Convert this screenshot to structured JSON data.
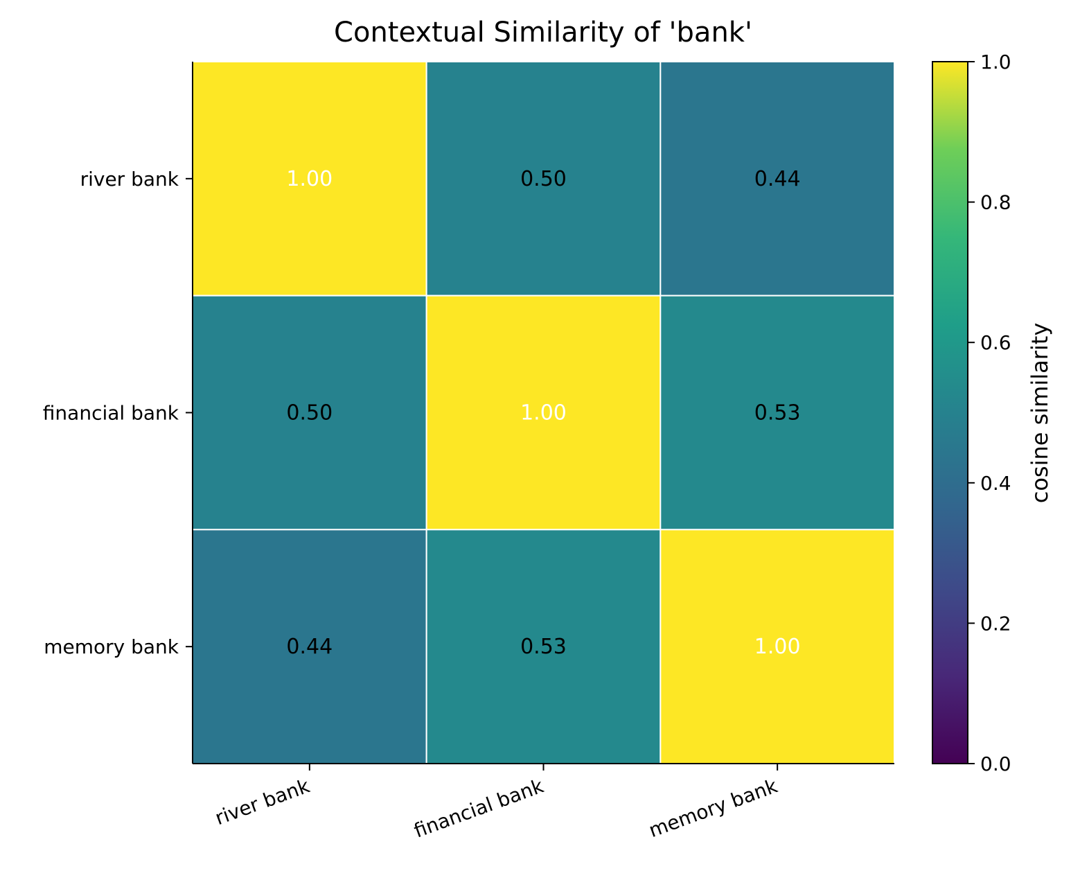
{
  "chart_data": {
    "type": "heatmap",
    "title": "Contextual Similarity of 'bank'",
    "row_labels": [
      "river bank",
      "financial bank",
      "memory bank"
    ],
    "col_labels": [
      "river bank",
      "financial bank",
      "memory bank"
    ],
    "values": [
      [
        1.0,
        0.5,
        0.44
      ],
      [
        0.5,
        1.0,
        0.53
      ],
      [
        0.44,
        0.53,
        1.0
      ]
    ],
    "cell_labels": [
      [
        "1.00",
        "0.50",
        "0.44"
      ],
      [
        "0.50",
        "1.00",
        "0.53"
      ],
      [
        "0.44",
        "0.53",
        "1.00"
      ]
    ],
    "colormap": "viridis",
    "vmin": 0.0,
    "vmax": 1.0,
    "colorbar": {
      "label": "cosine similarity",
      "ticks": [
        "0.0",
        "0.2",
        "0.4",
        "0.6",
        "0.8",
        "1.0"
      ]
    },
    "grid": false
  }
}
